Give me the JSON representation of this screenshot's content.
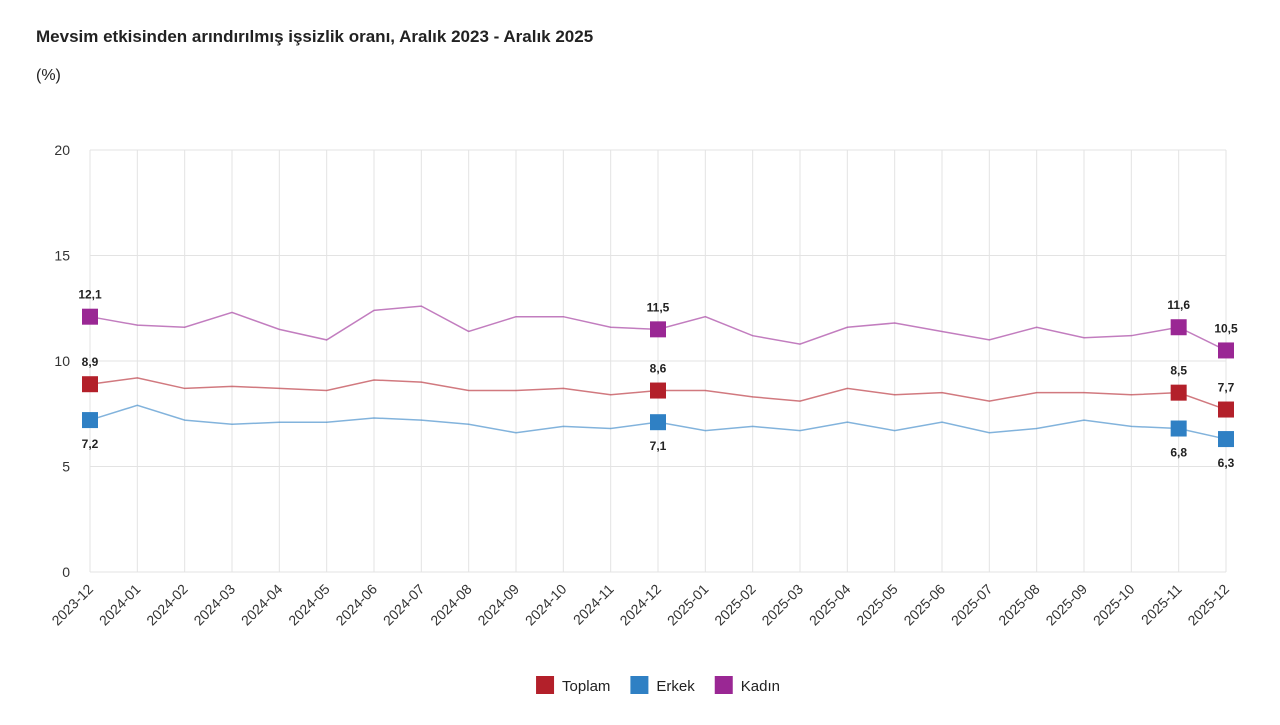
{
  "chart_data": {
    "type": "line",
    "title": "Mevsim etkisinden arındırılmış işsizlik oranı, Aralık 2023 - Aralık 2025",
    "subtitle": "(%)",
    "categories": [
      "2023-12",
      "2024-01",
      "2024-02",
      "2024-03",
      "2024-04",
      "2024-05",
      "2024-06",
      "2024-07",
      "2024-08",
      "2024-09",
      "2024-10",
      "2024-11",
      "2024-12",
      "2025-01",
      "2025-02",
      "2025-03",
      "2025-04",
      "2025-05",
      "2025-06",
      "2025-07",
      "2025-08",
      "2025-09",
      "2025-10",
      "2025-11",
      "2025-12"
    ],
    "series": [
      {
        "name": "Toplam",
        "color": "#b3202a",
        "values": [
          8.9,
          9.2,
          8.7,
          8.8,
          8.7,
          8.6,
          9.1,
          9.0,
          8.6,
          8.6,
          8.7,
          8.4,
          8.6,
          8.6,
          8.3,
          8.1,
          8.7,
          8.4,
          8.5,
          8.1,
          8.5,
          8.5,
          8.4,
          8.5,
          7.7
        ],
        "value_labels": [
          "8,9",
          null,
          null,
          null,
          null,
          null,
          null,
          null,
          null,
          null,
          null,
          null,
          "8,6",
          null,
          null,
          null,
          null,
          null,
          null,
          null,
          null,
          null,
          null,
          "8,5",
          "7,7"
        ]
      },
      {
        "name": "Erkek",
        "color": "#2f80c4",
        "values": [
          7.2,
          7.9,
          7.2,
          7.0,
          7.1,
          7.1,
          7.3,
          7.2,
          7.0,
          6.6,
          6.9,
          6.8,
          7.1,
          6.7,
          6.9,
          6.7,
          7.1,
          6.7,
          7.1,
          6.6,
          6.8,
          7.2,
          6.9,
          6.8,
          6.3
        ],
        "value_labels": [
          "7,2",
          null,
          null,
          null,
          null,
          null,
          null,
          null,
          null,
          null,
          null,
          null,
          "7,1",
          null,
          null,
          null,
          null,
          null,
          null,
          null,
          null,
          null,
          null,
          "6,8",
          "6,3"
        ]
      },
      {
        "name": "Kadın",
        "color": "#9a2794",
        "values": [
          12.1,
          11.7,
          11.6,
          12.3,
          11.5,
          11.0,
          12.4,
          12.6,
          11.4,
          12.1,
          12.1,
          11.6,
          11.5,
          12.1,
          11.2,
          10.8,
          11.6,
          11.8,
          11.4,
          11.0,
          11.6,
          11.1,
          11.2,
          11.6,
          10.5
        ],
        "value_labels": [
          "12,1",
          null,
          null,
          null,
          null,
          null,
          null,
          null,
          null,
          null,
          null,
          null,
          "11,5",
          null,
          null,
          null,
          null,
          null,
          null,
          null,
          null,
          null,
          null,
          "11,6",
          "10,5"
        ]
      }
    ],
    "ylim": [
      0,
      20
    ],
    "yticks": [
      0,
      5,
      10,
      15,
      20
    ],
    "grid": true,
    "legend": "bottom"
  }
}
